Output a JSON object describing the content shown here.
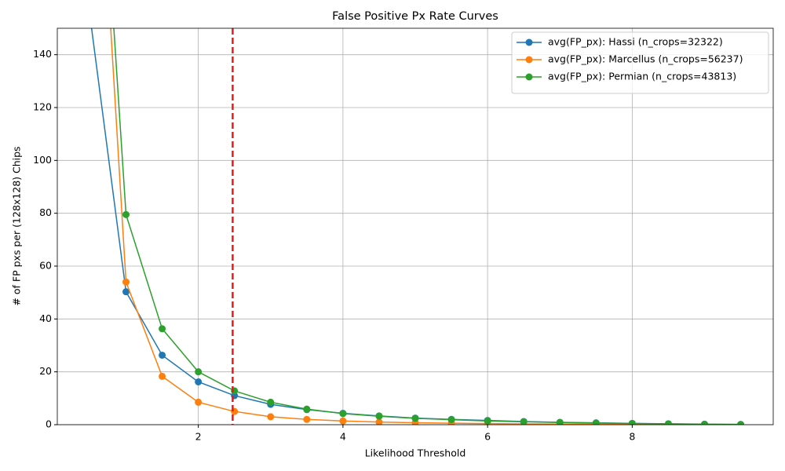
{
  "chart_data": {
    "type": "line",
    "title": "False Positive Px Rate Curves",
    "xlabel": "Likelihood Threshold",
    "ylabel": "# of FP pxs per (128x128) Chips",
    "x": [
      0.5,
      1,
      1.5,
      2,
      2.5,
      3,
      3.5,
      4,
      4.5,
      5,
      5.5,
      6,
      6.5,
      7,
      7.5,
      8,
      8.5,
      9,
      9.5
    ],
    "series": [
      {
        "name": "avg(FP_px): Hassi (n_crops=32322)",
        "color": "#1f77b4",
        "values": [
          155,
          50.3,
          26.3,
          16.2,
          11,
          7.7,
          5.7,
          4.3,
          3.3,
          2.5,
          2.0,
          1.6,
          1.2,
          0.9,
          0.7,
          0.5,
          0.35,
          0.2,
          0.1
        ]
      },
      {
        "name": "avg(FP_px): Marcellus (n_crops=56237)",
        "color": "#ff7f0e",
        "values": [
          281,
          54,
          18.3,
          8.5,
          5.0,
          3.0,
          2.0,
          1.4,
          1.0,
          0.75,
          0.55,
          0.4,
          0.3,
          0.22,
          0.16,
          0.12,
          0.08,
          0.05,
          0.03
        ]
      },
      {
        "name": "avg(FP_px): Permian (n_crops=43813)",
        "color": "#2ca02c",
        "values": [
          289,
          79.5,
          36.3,
          20,
          12.8,
          8.5,
          5.9,
          4.2,
          3.2,
          2.4,
          1.9,
          1.4,
          1.1,
          0.8,
          0.6,
          0.45,
          0.3,
          0.15,
          0.08
        ]
      }
    ],
    "vline": {
      "x": 2.475,
      "color": "#e41a1c"
    },
    "xlim": [
      0.05,
      9.95
    ],
    "ylim": [
      0,
      150
    ],
    "xticks": [
      2,
      4,
      6,
      8
    ],
    "yticks": [
      0,
      20,
      40,
      60,
      80,
      100,
      120,
      140
    ],
    "grid": true,
    "legend": "upper right"
  }
}
